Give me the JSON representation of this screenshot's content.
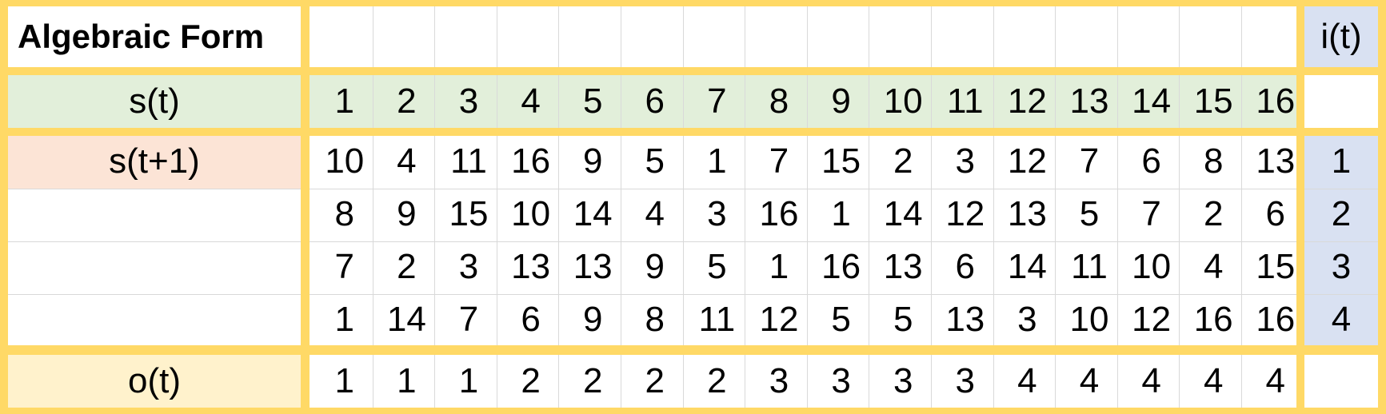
{
  "colors": {
    "frame": "#ffd966",
    "state_row_fill": "#e2efda",
    "transition_label_fill": "#fce4d6",
    "input_column_fill": "#d9e1f2",
    "output_row_fill": "#fff2cc",
    "gridline": "#d9d9d9"
  },
  "header": {
    "title": "Algebraic Form",
    "input_label": "i(t)"
  },
  "state_row": {
    "label": "s(t)",
    "values": [
      "1",
      "2",
      "3",
      "4",
      "5",
      "6",
      "7",
      "8",
      "9",
      "10",
      "11",
      "12",
      "13",
      "14",
      "15",
      "16"
    ]
  },
  "transition_label": "s(t+1)",
  "transitions": [
    {
      "input": "1",
      "values": [
        "10",
        "4",
        "11",
        "16",
        "9",
        "5",
        "1",
        "7",
        "15",
        "2",
        "3",
        "12",
        "7",
        "6",
        "8",
        "13"
      ]
    },
    {
      "input": "2",
      "values": [
        "8",
        "9",
        "15",
        "10",
        "14",
        "4",
        "3",
        "16",
        "1",
        "14",
        "12",
        "13",
        "5",
        "7",
        "2",
        "6"
      ]
    },
    {
      "input": "3",
      "values": [
        "7",
        "2",
        "3",
        "13",
        "13",
        "9",
        "5",
        "1",
        "16",
        "13",
        "6",
        "14",
        "11",
        "10",
        "4",
        "15"
      ]
    },
    {
      "input": "4",
      "values": [
        "1",
        "14",
        "7",
        "6",
        "9",
        "8",
        "11",
        "12",
        "5",
        "5",
        "13",
        "3",
        "10",
        "12",
        "16",
        "16"
      ]
    }
  ],
  "output_row": {
    "label": "o(t)",
    "values": [
      "1",
      "1",
      "1",
      "2",
      "2",
      "2",
      "2",
      "3",
      "3",
      "3",
      "3",
      "4",
      "4",
      "4",
      "4",
      "4"
    ]
  }
}
